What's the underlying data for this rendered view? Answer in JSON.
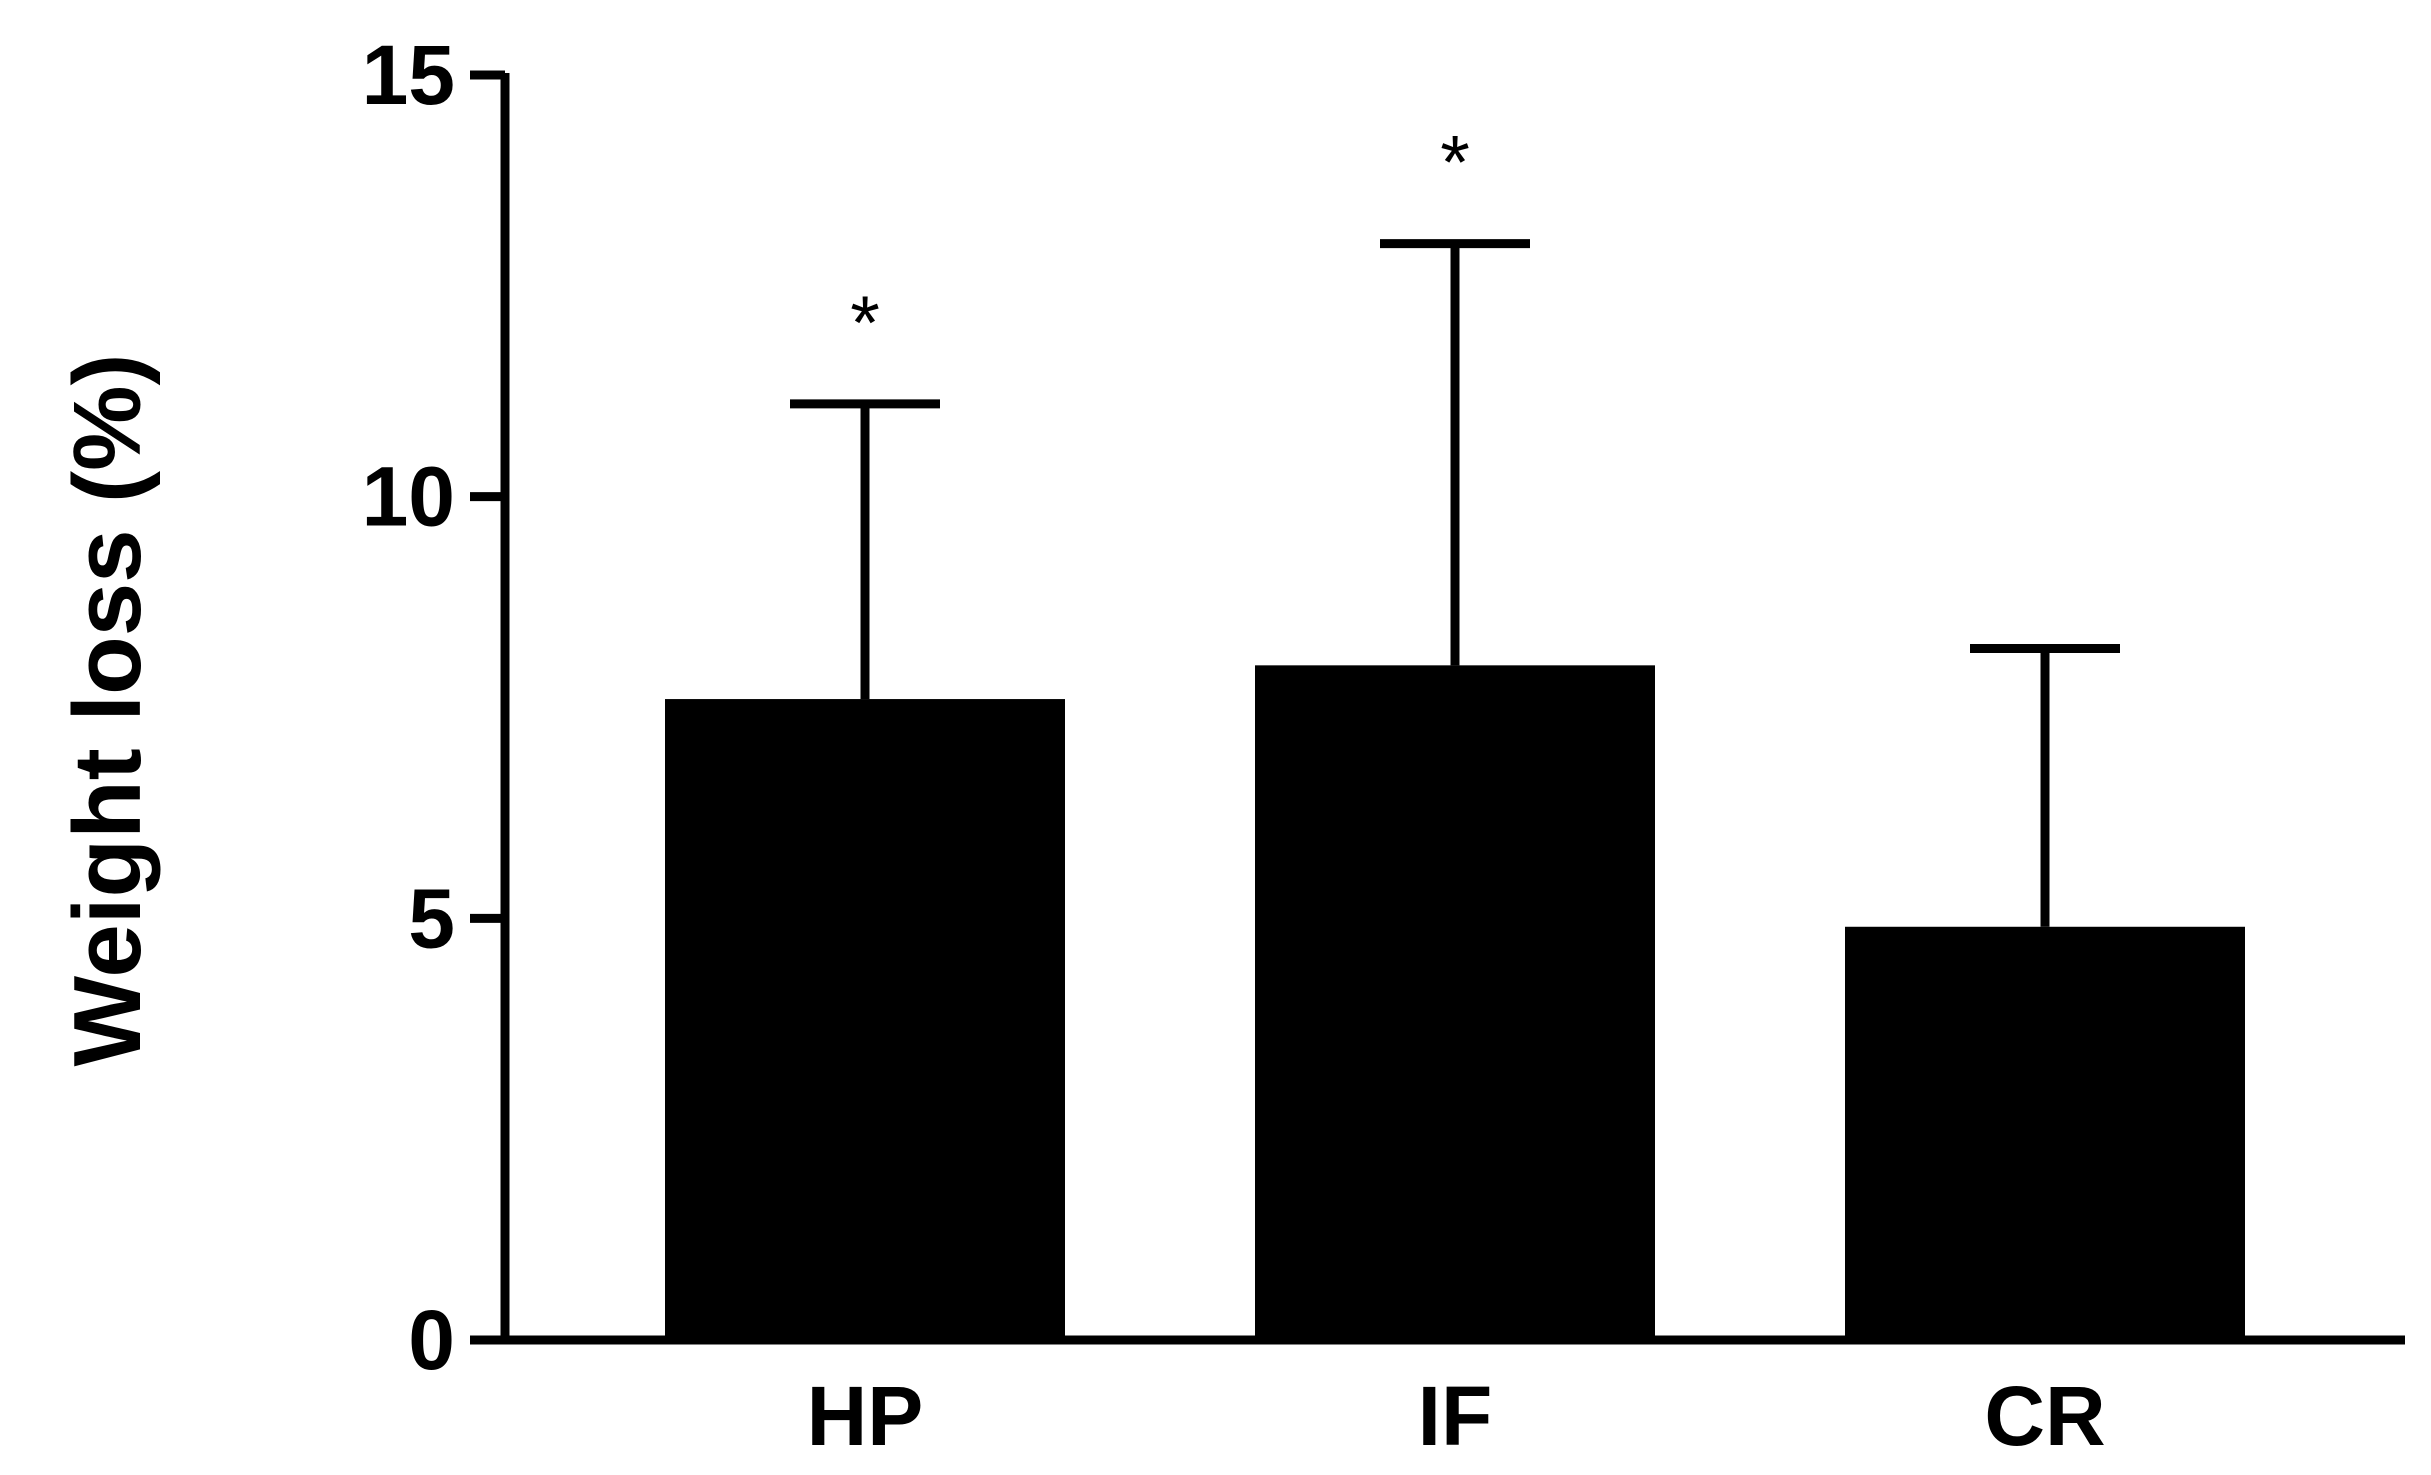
{
  "chart_data": {
    "type": "bar",
    "title": "",
    "xlabel": "",
    "ylabel": "Weight loss (%)",
    "categories": [
      "HP",
      "IF",
      "CR"
    ],
    "values": [
      7.6,
      8.0,
      4.9
    ],
    "error_upper": [
      11.1,
      13.0,
      8.2
    ],
    "significance": [
      "*",
      "*",
      ""
    ],
    "ylim": [
      0,
      15
    ],
    "yticks": [
      0,
      5,
      10,
      15
    ],
    "ytick_labels": [
      "0",
      "5",
      "10",
      "15"
    ],
    "bar_color": "#000000",
    "grid": false,
    "legend": "none"
  }
}
